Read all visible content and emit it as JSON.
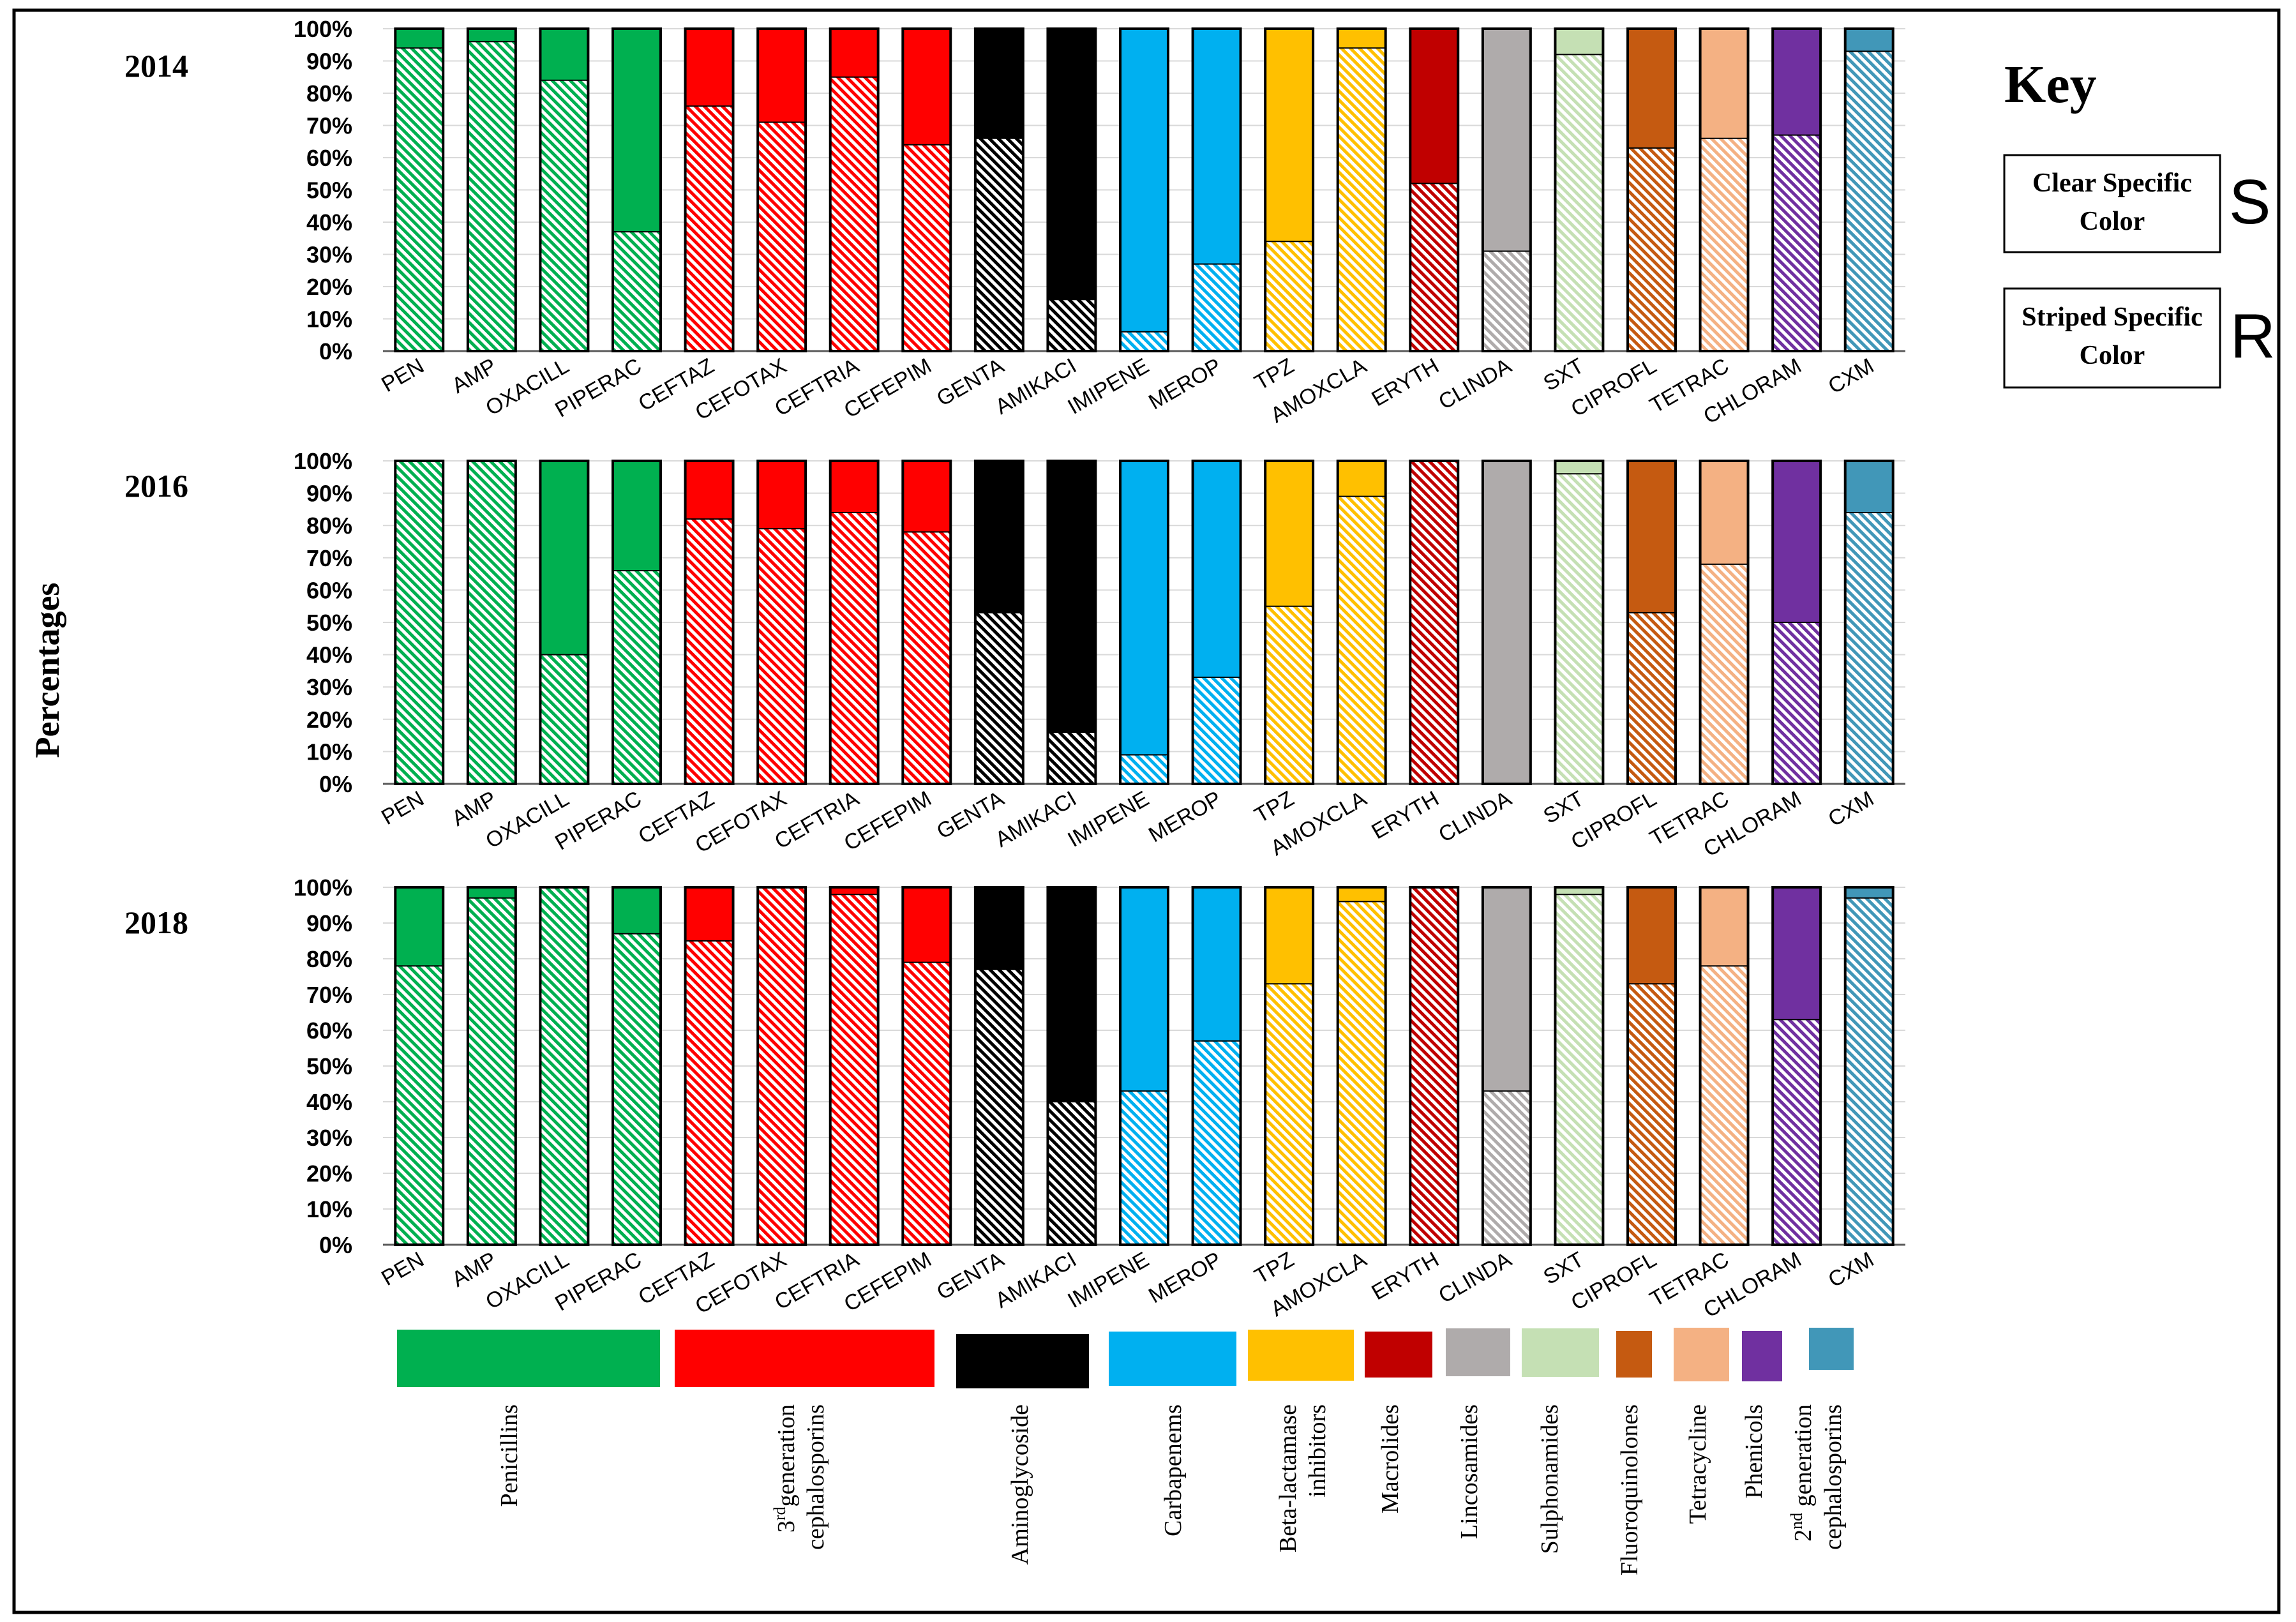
{
  "y_axis_title": "Percentages",
  "key": {
    "title": "Key",
    "items": [
      {
        "label_lines": [
          "Clear Specific",
          "Color"
        ],
        "letter": "S"
      },
      {
        "label_lines": [
          "Striped Specific",
          "Color"
        ],
        "letter": "R"
      }
    ]
  },
  "colors": {
    "penicillins": "#00b050",
    "cephalosporins_3rd": "#ff0000",
    "aminoglycoside": "#000000",
    "carbapenems": "#00b0f0",
    "beta_lactamase_inhibitors": "#ffc000",
    "macrolides": "#c00000",
    "lincosamides": "#afabab",
    "sulphonamides": "#c5e0b4",
    "fluoroquinolones": "#c55a11",
    "tetracycline": "#f4b183",
    "phenicols": "#7030a0",
    "cephalosporins_2nd": "#4197b8"
  },
  "legend": [
    {
      "label": "Penicillins",
      "color_key": "penicillins"
    },
    {
      "label": "3rdgeneration cephalosporins",
      "color_key": "cephalosporins_3rd"
    },
    {
      "label": "Aminoglycoside",
      "color_key": "aminoglycoside"
    },
    {
      "label": "Carbapenems",
      "color_key": "carbapenems"
    },
    {
      "label": "Beta-lactamase inhibitors",
      "color_key": "beta_lactamase_inhibitors"
    },
    {
      "label": "Macrolides",
      "color_key": "macrolides"
    },
    {
      "label": "Lincosamides",
      "color_key": "lincosamides"
    },
    {
      "label": "Sulphonamides",
      "color_key": "sulphonamides"
    },
    {
      "label": "Fluoroquinolones",
      "color_key": "fluoroquinolones"
    },
    {
      "label": "Tetracycline",
      "color_key": "tetracycline"
    },
    {
      "label": "Phenicols",
      "color_key": "phenicols"
    },
    {
      "label": "2nd generation cephalosporins",
      "color_key": "cephalosporins_2nd"
    }
  ],
  "chart_data": [
    {
      "type": "bar",
      "stacked": true,
      "title": "2014",
      "ylim": [
        0,
        100
      ],
      "yticks": [
        "0%",
        "10%",
        "20%",
        "30%",
        "40%",
        "50%",
        "60%",
        "70%",
        "80%",
        "90%",
        "100%"
      ],
      "grid": true,
      "categories": [
        "PEN",
        "AMP",
        "OXACILL",
        "PIPERAC",
        "CEFTAZ",
        "CEFOTAX",
        "CEFTRIA",
        "CEFEPIM",
        "GENTA",
        "AMIKACI",
        "IMIPENE",
        "MEROP",
        "TPZ",
        "AMOXCLA",
        "ERYTH",
        "CLINDA",
        "SXT",
        "CIPROFL",
        "TETRAC",
        "CHLORAM",
        "CXM"
      ],
      "category_colors": [
        "penicillins",
        "penicillins",
        "penicillins",
        "penicillins",
        "cephalosporins_3rd",
        "cephalosporins_3rd",
        "cephalosporins_3rd",
        "cephalosporins_3rd",
        "aminoglycoside",
        "aminoglycoside",
        "carbapenems",
        "carbapenems",
        "beta_lactamase_inhibitors",
        "beta_lactamase_inhibitors",
        "macrolides",
        "lincosamides",
        "sulphonamides",
        "fluoroquinolones",
        "tetracycline",
        "phenicols",
        "cephalosporins_2nd"
      ],
      "series": [
        {
          "name": "R",
          "values": [
            94,
            96,
            84,
            37,
            76,
            71,
            85,
            64,
            66,
            16,
            6,
            27,
            34,
            94,
            52,
            31,
            92,
            63,
            66,
            67,
            93
          ]
        },
        {
          "name": "S",
          "values": [
            6,
            4,
            16,
            63,
            24,
            29,
            15,
            36,
            34,
            84,
            94,
            73,
            66,
            6,
            48,
            69,
            8,
            37,
            34,
            33,
            7
          ]
        }
      ]
    },
    {
      "type": "bar",
      "stacked": true,
      "title": "2016",
      "ylim": [
        0,
        100
      ],
      "yticks": [
        "0%",
        "10%",
        "20%",
        "30%",
        "40%",
        "50%",
        "60%",
        "70%",
        "80%",
        "90%",
        "100%"
      ],
      "grid": true,
      "categories": [
        "PEN",
        "AMP",
        "OXACILL",
        "PIPERAC",
        "CEFTAZ",
        "CEFOTAX",
        "CEFTRIA",
        "CEFEPIM",
        "GENTA",
        "AMIKACI",
        "IMIPENE",
        "MEROP",
        "TPZ",
        "AMOXCLA",
        "ERYTH",
        "CLINDA",
        "SXT",
        "CIPROFL",
        "TETRAC",
        "CHLORAM",
        "CXM"
      ],
      "category_colors": [
        "penicillins",
        "penicillins",
        "penicillins",
        "penicillins",
        "cephalosporins_3rd",
        "cephalosporins_3rd",
        "cephalosporins_3rd",
        "cephalosporins_3rd",
        "aminoglycoside",
        "aminoglycoside",
        "carbapenems",
        "carbapenems",
        "beta_lactamase_inhibitors",
        "beta_lactamase_inhibitors",
        "macrolides",
        "lincosamides",
        "sulphonamides",
        "fluoroquinolones",
        "tetracycline",
        "phenicols",
        "cephalosporins_2nd"
      ],
      "series": [
        {
          "name": "R",
          "values": [
            100,
            100,
            40,
            66,
            82,
            79,
            84,
            78,
            53,
            16,
            9,
            33,
            55,
            89,
            100,
            0,
            96,
            53,
            68,
            50,
            84
          ]
        },
        {
          "name": "S",
          "values": [
            0,
            0,
            60,
            34,
            18,
            21,
            16,
            22,
            47,
            84,
            91,
            67,
            45,
            11,
            0,
            100,
            4,
            47,
            32,
            50,
            16
          ]
        }
      ]
    },
    {
      "type": "bar",
      "stacked": true,
      "title": "2018",
      "ylim": [
        0,
        100
      ],
      "yticks": [
        "0%",
        "10%",
        "20%",
        "30%",
        "40%",
        "50%",
        "60%",
        "70%",
        "80%",
        "90%",
        "100%"
      ],
      "grid": true,
      "categories": [
        "PEN",
        "AMP",
        "OXACILL",
        "PIPERAC",
        "CEFTAZ",
        "CEFOTAX",
        "CEFTRIA",
        "CEFEPIM",
        "GENTA",
        "AMIKACI",
        "IMIPENE",
        "MEROP",
        "TPZ",
        "AMOXCLA",
        "ERYTH",
        "CLINDA",
        "SXT",
        "CIPROFL",
        "TETRAC",
        "CHLORAM",
        "CXM"
      ],
      "category_colors": [
        "penicillins",
        "penicillins",
        "penicillins",
        "penicillins",
        "cephalosporins_3rd",
        "cephalosporins_3rd",
        "cephalosporins_3rd",
        "cephalosporins_3rd",
        "aminoglycoside",
        "aminoglycoside",
        "carbapenems",
        "carbapenems",
        "beta_lactamase_inhibitors",
        "beta_lactamase_inhibitors",
        "macrolides",
        "lincosamides",
        "sulphonamides",
        "fluoroquinolones",
        "tetracycline",
        "phenicols",
        "cephalosporins_2nd"
      ],
      "series": [
        {
          "name": "R",
          "values": [
            78,
            97,
            100,
            87,
            85,
            100,
            98,
            79,
            77,
            40,
            43,
            57,
            73,
            96,
            100,
            43,
            98,
            73,
            78,
            63,
            97
          ]
        },
        {
          "name": "S",
          "values": [
            22,
            3,
            0,
            13,
            15,
            0,
            2,
            21,
            23,
            60,
            57,
            43,
            27,
            4,
            0,
            57,
            2,
            27,
            22,
            37,
            3
          ]
        }
      ]
    }
  ]
}
